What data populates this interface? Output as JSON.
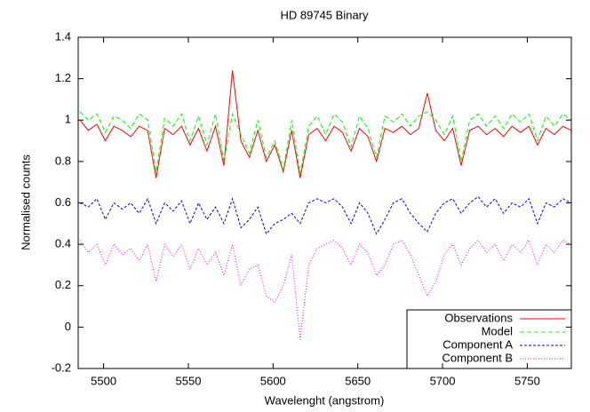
{
  "chart_data": {
    "type": "line",
    "title": "HD 89745 Binary",
    "x_label": "Wavelenght (angstrom)",
    "y_label": "Normalised counts",
    "xlim": [
      5485,
      5776
    ],
    "ylim": [
      -0.2,
      1.4
    ],
    "xticks": [
      5500,
      5550,
      5600,
      5650,
      5700,
      5750
    ],
    "yticks": [
      -0.2,
      0,
      0.2,
      0.4,
      0.6,
      0.8,
      1,
      1.2,
      1.4
    ],
    "legend": "bottom-right",
    "x": [
      5486,
      5491,
      5496,
      5501,
      5506,
      5511,
      5516,
      5521,
      5526,
      5531,
      5536,
      5541,
      5546,
      5551,
      5556,
      5561,
      5566,
      5571,
      5576,
      5581,
      5586,
      5591,
      5596,
      5601,
      5606,
      5611,
      5616,
      5621,
      5626,
      5631,
      5636,
      5641,
      5646,
      5651,
      5656,
      5661,
      5666,
      5671,
      5676,
      5681,
      5686,
      5691,
      5696,
      5701,
      5706,
      5711,
      5716,
      5721,
      5726,
      5731,
      5736,
      5741,
      5746,
      5751,
      5756,
      5761,
      5766,
      5771,
      5776
    ],
    "series": [
      {
        "name": "Observations",
        "color": "#ff0000",
        "values": [
          1.0,
          0.95,
          0.98,
          0.9,
          0.97,
          0.95,
          0.92,
          0.97,
          0.95,
          0.72,
          0.96,
          0.93,
          0.97,
          0.88,
          0.96,
          0.85,
          0.97,
          0.78,
          1.24,
          0.9,
          0.82,
          0.95,
          0.8,
          0.88,
          0.75,
          0.95,
          0.72,
          0.93,
          0.96,
          0.9,
          0.97,
          0.94,
          0.85,
          0.96,
          0.92,
          0.8,
          0.96,
          0.94,
          0.97,
          0.93,
          0.96,
          1.13,
          0.95,
          0.9,
          0.96,
          0.78,
          0.95,
          0.97,
          0.93,
          0.96,
          0.92,
          0.97,
          0.94,
          0.97,
          0.88,
          0.96,
          0.93,
          0.97,
          0.95
        ]
      },
      {
        "name": "Model",
        "color": "#00ff00",
        "values": [
          1.04,
          1.0,
          1.03,
          0.94,
          1.02,
          1.0,
          0.96,
          1.03,
          1.0,
          0.75,
          1.01,
          0.97,
          1.03,
          0.9,
          1.02,
          0.88,
          1.03,
          0.8,
          1.03,
          0.93,
          0.84,
          1.0,
          0.82,
          0.9,
          0.76,
          1.0,
          0.74,
          0.97,
          1.02,
          0.93,
          1.03,
          0.99,
          0.87,
          1.02,
          0.96,
          0.82,
          1.02,
          0.99,
          1.03,
          0.97,
          1.02,
          1.04,
          1.0,
          0.93,
          1.02,
          0.8,
          1.0,
          1.03,
          0.97,
          1.02,
          0.96,
          1.03,
          0.99,
          1.03,
          0.9,
          1.02,
          0.97,
          1.03,
          1.0
        ]
      },
      {
        "name": "Component A",
        "color": "#0000ff",
        "values": [
          0.6,
          0.58,
          0.62,
          0.52,
          0.6,
          0.57,
          0.6,
          0.55,
          0.62,
          0.5,
          0.6,
          0.56,
          0.61,
          0.5,
          0.6,
          0.52,
          0.58,
          0.5,
          0.62,
          0.48,
          0.52,
          0.58,
          0.45,
          0.5,
          0.52,
          0.55,
          0.5,
          0.6,
          0.62,
          0.6,
          0.62,
          0.58,
          0.5,
          0.6,
          0.55,
          0.45,
          0.52,
          0.6,
          0.62,
          0.55,
          0.5,
          0.46,
          0.55,
          0.6,
          0.62,
          0.55,
          0.6,
          0.63,
          0.58,
          0.62,
          0.55,
          0.6,
          0.58,
          0.62,
          0.5,
          0.6,
          0.58,
          0.62,
          0.6
        ]
      },
      {
        "name": "Component B",
        "color": "#ff00ff",
        "values": [
          0.42,
          0.36,
          0.4,
          0.3,
          0.4,
          0.35,
          0.38,
          0.32,
          0.4,
          0.22,
          0.4,
          0.34,
          0.4,
          0.28,
          0.38,
          0.3,
          0.36,
          0.25,
          0.4,
          0.2,
          0.28,
          0.3,
          0.15,
          0.12,
          0.2,
          0.35,
          -0.06,
          0.3,
          0.38,
          0.4,
          0.42,
          0.38,
          0.3,
          0.4,
          0.36,
          0.25,
          0.3,
          0.4,
          0.42,
          0.35,
          0.25,
          0.15,
          0.22,
          0.35,
          0.4,
          0.3,
          0.38,
          0.42,
          0.36,
          0.4,
          0.32,
          0.4,
          0.36,
          0.42,
          0.3,
          0.4,
          0.36,
          0.42,
          0.4
        ]
      }
    ]
  }
}
